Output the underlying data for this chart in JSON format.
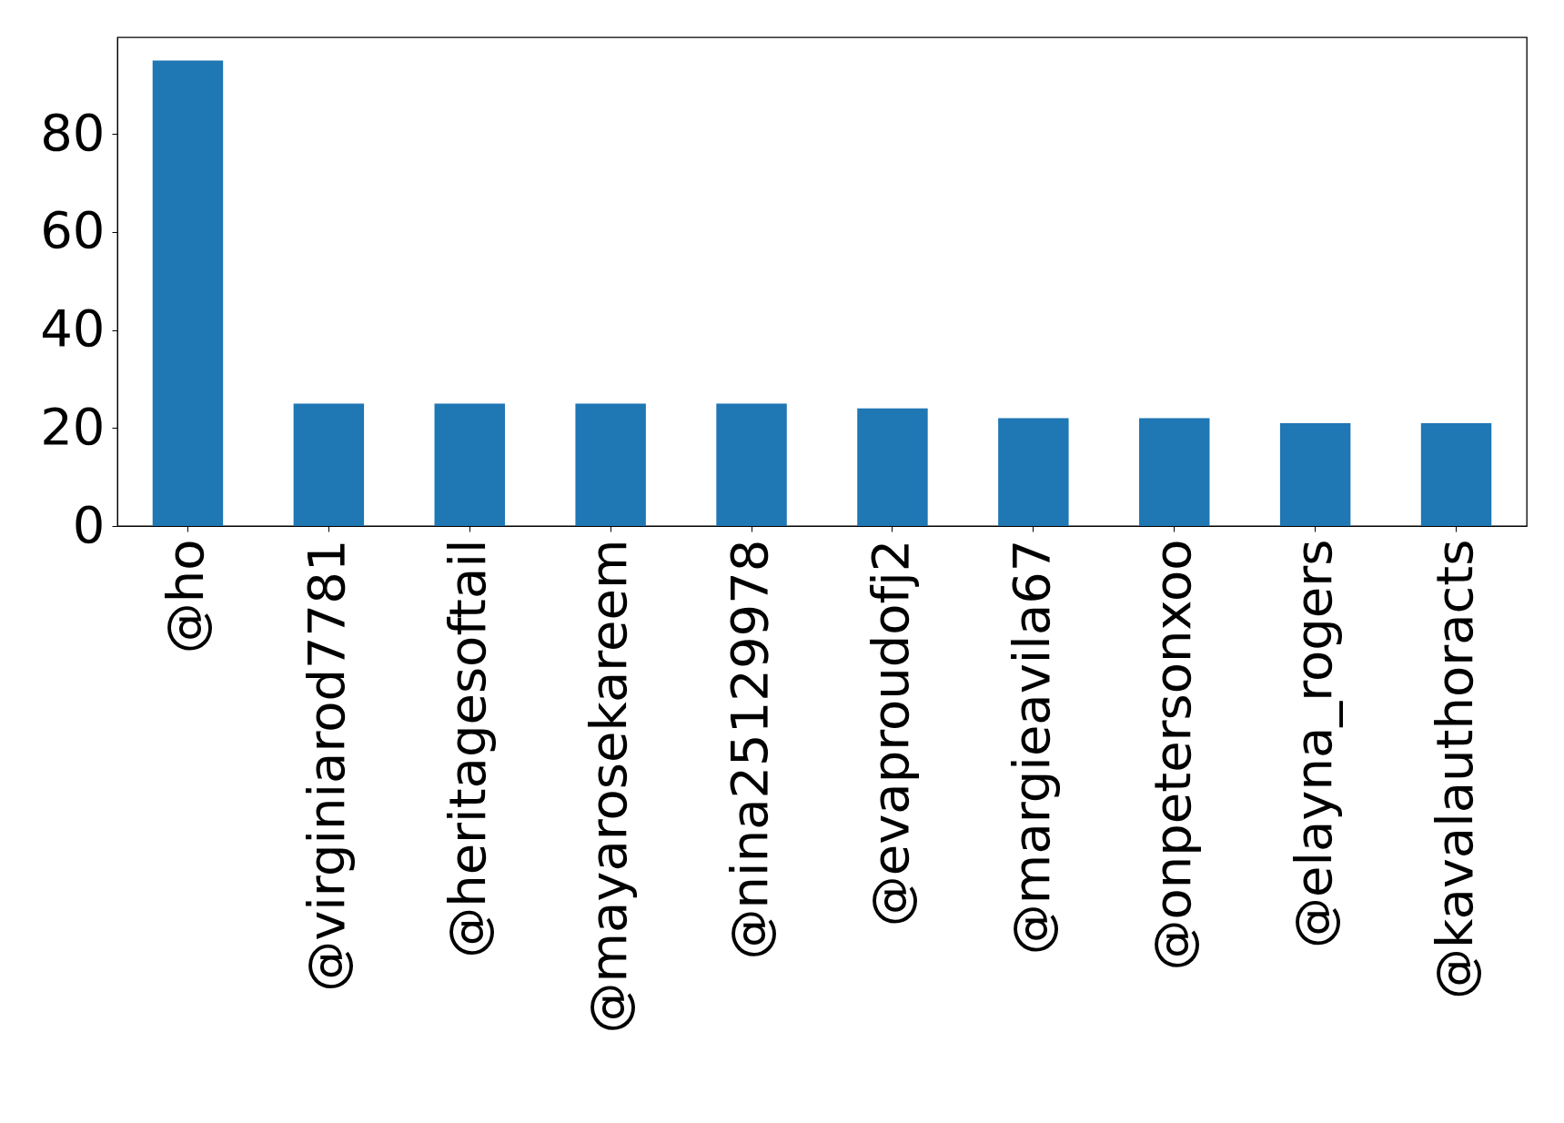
{
  "chart_data": {
    "type": "bar",
    "categories": [
      "@ho",
      "@virginiarod7781",
      "@heritagesoftail",
      "@mayarosekareem",
      "@nina25129978",
      "@evaproudofj2",
      "@margieavila67",
      "@onpetersonxoo",
      "@elayna_rogers",
      "@kavalauthoracts"
    ],
    "values": [
      95,
      25,
      25,
      25,
      25,
      24,
      22,
      22,
      21,
      21
    ],
    "color": "#1f77b4",
    "ylim": [
      0,
      99.75
    ],
    "yticks": [
      0,
      20,
      40,
      60,
      80
    ],
    "grid": false
  }
}
